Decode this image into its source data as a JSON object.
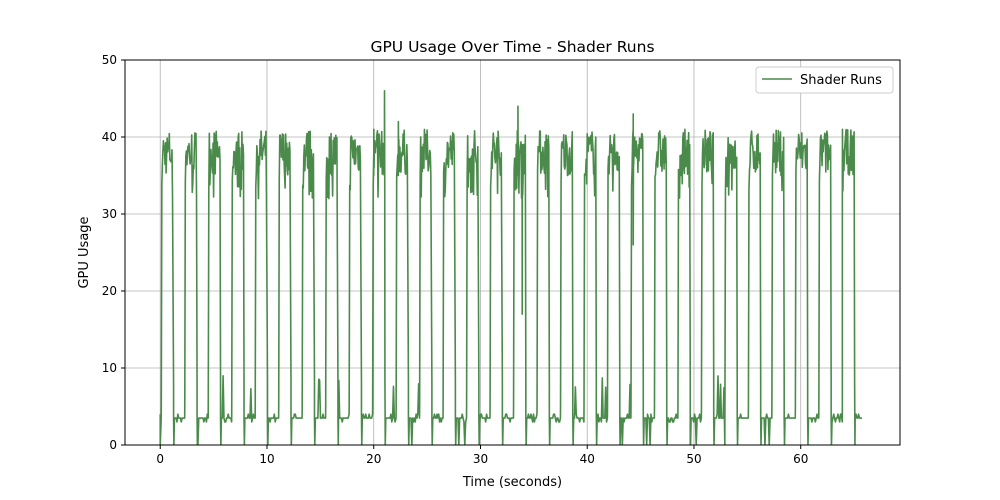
{
  "chart_data": {
    "type": "line",
    "title": "GPU Usage Over Time - Shader Runs",
    "xlabel": "Time (seconds)",
    "ylabel": "GPU Usage",
    "xlim": [
      -3.3,
      69.3
    ],
    "ylim": [
      0,
      50
    ],
    "xticks": [
      0,
      10,
      20,
      30,
      40,
      50,
      60
    ],
    "yticks": [
      0,
      10,
      20,
      30,
      40,
      50
    ],
    "grid": true,
    "legend_position": "top-right",
    "series": [
      {
        "name": "Shader Runs",
        "color": "#4a8a4a",
        "cycle_start_times": [
          0.1,
          2.3,
          4.5,
          6.7,
          8.9,
          11.1,
          13.3,
          15.5,
          17.7,
          19.9,
          22.1,
          24.3,
          26.5,
          28.7,
          30.9,
          33.1,
          35.3,
          37.5,
          39.7,
          41.9,
          44.1,
          46.3,
          48.5,
          50.7,
          52.9,
          55.1,
          57.3,
          59.5,
          61.7,
          63.9
        ],
        "idle_level": 3.5,
        "active_level_range": [
          33,
          41
        ],
        "active_peaks": [
          {
            "x": 21.0,
            "y": 46
          },
          {
            "x": 33.5,
            "y": 44
          },
          {
            "x": 44.3,
            "y": 43
          },
          {
            "x": 20.0,
            "y": 41
          },
          {
            "x": 22.3,
            "y": 42
          },
          {
            "x": 63.9,
            "y": 41
          }
        ],
        "notable_dips": [
          {
            "x": 33.9,
            "y": 17
          },
          {
            "x": 44.3,
            "y": 26
          }
        ],
        "x_end": 65.8
      }
    ]
  }
}
